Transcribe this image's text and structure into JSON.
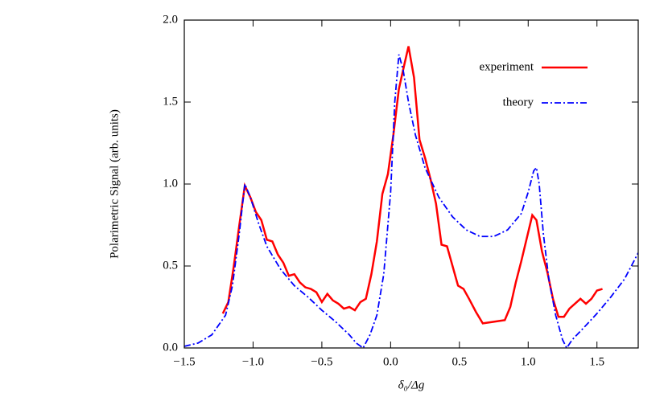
{
  "chart_data": {
    "type": "line",
    "x_label": "δ₀/Δg",
    "y_label": "Polarimetric Signal (arb. units)",
    "xlim": [
      -1.5,
      1.8
    ],
    "ylim": [
      0,
      2
    ],
    "xticks": [
      {
        "value": -1.5,
        "label": "−1.5"
      },
      {
        "value": -1,
        "label": "−1.0"
      },
      {
        "value": -0.5,
        "label": "−0.5"
      },
      {
        "value": 0,
        "label": "0.0"
      },
      {
        "value": 0.5,
        "label": "0.5"
      },
      {
        "value": 1,
        "label": "1.0"
      },
      {
        "value": 1.5,
        "label": "1.5"
      }
    ],
    "yticks": [
      {
        "value": 0,
        "label": "0.0"
      },
      {
        "value": 0.5,
        "label": "0.5"
      },
      {
        "value": 1,
        "label": "1.0"
      },
      {
        "value": 1.5,
        "label": "1.5"
      },
      {
        "value": 2,
        "label": "2.0"
      }
    ],
    "legend": "upper right",
    "series": [
      {
        "name": "experiment",
        "color": "#ff0000",
        "dash": "solid",
        "x": [
          -1.22,
          -1.18,
          -1.14,
          -1.1,
          -1.06,
          -1.02,
          -0.98,
          -0.94,
          -0.9,
          -0.86,
          -0.82,
          -0.78,
          -0.74,
          -0.7,
          -0.66,
          -0.62,
          -0.58,
          -0.54,
          -0.5,
          -0.46,
          -0.42,
          -0.38,
          -0.34,
          -0.3,
          -0.26,
          -0.22,
          -0.18,
          -0.14,
          -0.1,
          -0.06,
          -0.02,
          0.02,
          0.06,
          0.1,
          0.13,
          0.17,
          0.21,
          0.25,
          0.29,
          0.33,
          0.37,
          0.41,
          0.45,
          0.49,
          0.53,
          0.57,
          0.62,
          0.67,
          0.75,
          0.83,
          0.87,
          0.91,
          0.95,
          0.99,
          1.03,
          1.06,
          1.1,
          1.14,
          1.18,
          1.22,
          1.26,
          1.3,
          1.34,
          1.38,
          1.42,
          1.46,
          1.5,
          1.54
        ],
        "values": [
          0.21,
          0.28,
          0.5,
          0.75,
          0.99,
          0.92,
          0.83,
          0.78,
          0.66,
          0.65,
          0.57,
          0.52,
          0.44,
          0.45,
          0.4,
          0.37,
          0.36,
          0.34,
          0.28,
          0.33,
          0.29,
          0.27,
          0.24,
          0.25,
          0.23,
          0.28,
          0.3,
          0.45,
          0.65,
          0.94,
          1.06,
          1.3,
          1.58,
          1.73,
          1.84,
          1.65,
          1.27,
          1.16,
          1.03,
          0.88,
          0.63,
          0.62,
          0.5,
          0.38,
          0.36,
          0.3,
          0.22,
          0.15,
          0.16,
          0.17,
          0.25,
          0.4,
          0.53,
          0.67,
          0.81,
          0.78,
          0.59,
          0.46,
          0.3,
          0.19,
          0.19,
          0.24,
          0.27,
          0.3,
          0.27,
          0.3,
          0.35,
          0.36
        ]
      },
      {
        "name": "theory",
        "color": "#0000ff",
        "dash": "dashdot",
        "x": [
          -1.5,
          -1.4,
          -1.3,
          -1.2,
          -1.15,
          -1.1,
          -1.06,
          -1.02,
          -0.96,
          -0.9,
          -0.8,
          -0.7,
          -0.6,
          -0.5,
          -0.4,
          -0.3,
          -0.25,
          -0.2,
          -0.15,
          -0.1,
          -0.05,
          0,
          0.03,
          0.06,
          0.09,
          0.13,
          0.18,
          0.25,
          0.35,
          0.45,
          0.55,
          0.65,
          0.75,
          0.85,
          0.95,
          1,
          1.04,
          1.06,
          1.08,
          1.11,
          1.15,
          1.2,
          1.25,
          1.28,
          1.32,
          1.4,
          1.5,
          1.6,
          1.7,
          1.8
        ],
        "values": [
          0.01,
          0.03,
          0.08,
          0.2,
          0.38,
          0.7,
          1.0,
          0.92,
          0.76,
          0.62,
          0.48,
          0.38,
          0.31,
          0.23,
          0.16,
          0.08,
          0.03,
          0,
          0.08,
          0.2,
          0.45,
          0.95,
          1.5,
          1.79,
          1.7,
          1.5,
          1.3,
          1.1,
          0.92,
          0.8,
          0.72,
          0.68,
          0.68,
          0.72,
          0.82,
          0.95,
          1.08,
          1.1,
          1.0,
          0.7,
          0.42,
          0.2,
          0.05,
          0,
          0.05,
          0.12,
          0.21,
          0.31,
          0.42,
          0.58
        ]
      }
    ]
  }
}
